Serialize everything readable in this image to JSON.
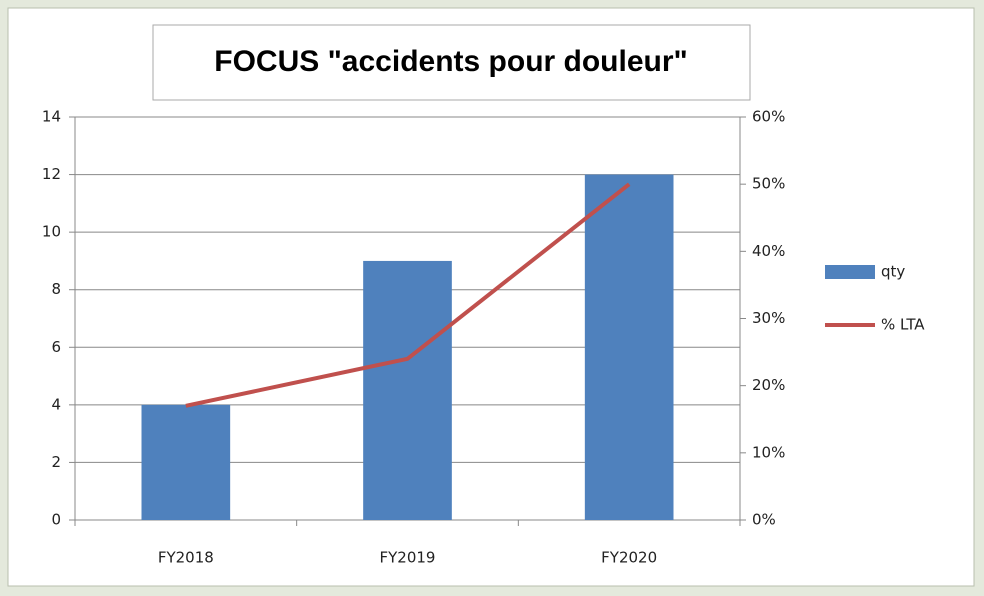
{
  "chart_data": {
    "type": "bar",
    "title": "FOCUS \"accidents pour douleur\"",
    "categories": [
      "FY2018",
      "FY2019",
      "FY2020"
    ],
    "series": [
      {
        "name": "qty",
        "type": "bar",
        "color": "#4f81bd",
        "values": [
          4,
          9,
          12
        ]
      },
      {
        "name": "% LTA",
        "type": "line",
        "color": "#c0504d",
        "axis": "y2",
        "values": [
          17,
          24,
          50
        ]
      }
    ],
    "ylim": [
      0,
      14
    ],
    "yticks": [
      0,
      2,
      4,
      6,
      8,
      10,
      12,
      14
    ],
    "y2lim": [
      0,
      60
    ],
    "y2ticks": [
      {
        "value": 0,
        "label": "0%"
      },
      {
        "value": 10,
        "label": "10%"
      },
      {
        "value": 20,
        "label": "20%"
      },
      {
        "value": 30,
        "label": "30%"
      },
      {
        "value": 40,
        "label": "40%"
      },
      {
        "value": 50,
        "label": "50%"
      },
      {
        "value": 60,
        "label": "60%"
      }
    ],
    "grid": true,
    "legend": "right"
  }
}
